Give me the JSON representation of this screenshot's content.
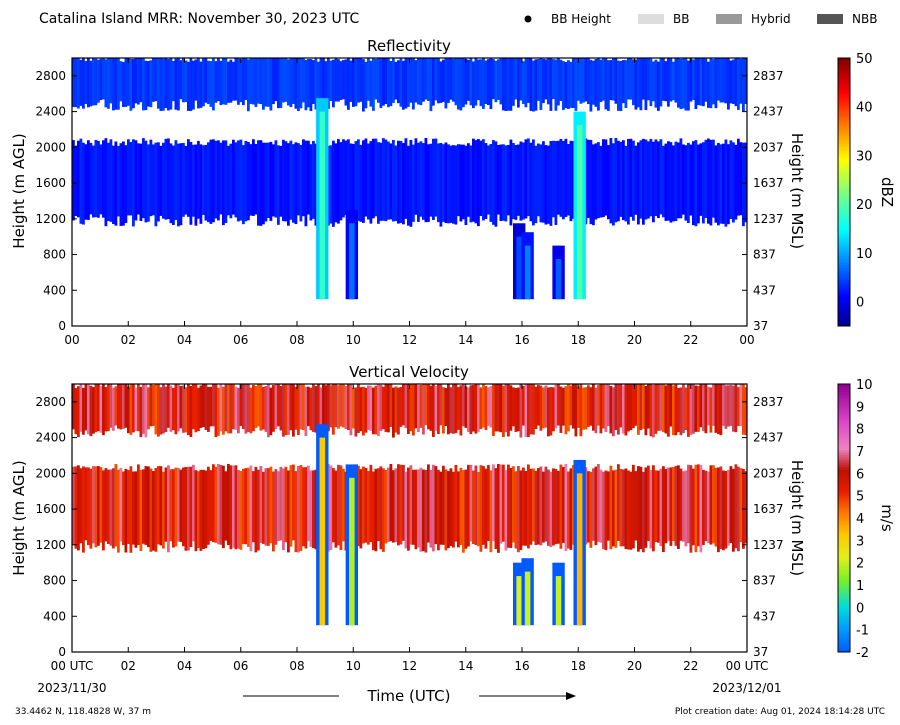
{
  "header": {
    "title": "Catalina Island MRR:  November 30, 2023 UTC",
    "legend": [
      {
        "label": "BB Height",
        "kind": "dot",
        "color": "#000000"
      },
      {
        "label": "BB",
        "kind": "box",
        "color": "#dddddd"
      },
      {
        "label": "Hybrid",
        "kind": "box",
        "color": "#999999"
      },
      {
        "label": "NBB",
        "kind": "box",
        "color": "#555555"
      }
    ]
  },
  "footer": {
    "location": "33.4462 N, 118.4828 W, 37 m",
    "creation": "Plot creation date: Aug 01, 2024 18:14:28 UTC",
    "time_label": "Time (UTC)",
    "start_date": "2023/11/30",
    "end_date": "2023/12/01"
  },
  "chart_data": [
    {
      "type": "heatmap",
      "title": "Reflectivity",
      "ylabel": "Height (m AGL)",
      "ylabel_right": "Height (m MSL)",
      "xlim": [
        0,
        24
      ],
      "ylim": [
        0,
        3000
      ],
      "x_ticks": [
        "00",
        "02",
        "04",
        "06",
        "08",
        "10",
        "12",
        "14",
        "16",
        "18",
        "20",
        "22",
        "00"
      ],
      "y_ticks": [
        0,
        400,
        800,
        1200,
        1600,
        2000,
        2400,
        2800
      ],
      "y_ticks_right": [
        37,
        437,
        837,
        1237,
        1637,
        2037,
        2437,
        2837
      ],
      "colorbar": {
        "label": "dBZ",
        "min": -5,
        "max": 50,
        "ticks": [
          0,
          10,
          20,
          30,
          40,
          50
        ]
      },
      "layers": [
        {
          "t0": 0,
          "t1": 24,
          "z0": 1180,
          "z1": 2060,
          "value": 2
        },
        {
          "t0": 0,
          "t1": 24,
          "z0": 2470,
          "z1": 3000,
          "value": 4
        }
      ],
      "cells": [
        {
          "t": 8.9,
          "z0": 300,
          "z1": 2550,
          "value": 18
        },
        {
          "t": 9.95,
          "z0": 300,
          "z1": 1300,
          "value": 7
        },
        {
          "t": 15.9,
          "z0": 300,
          "z1": 1150,
          "value": 5
        },
        {
          "t": 16.2,
          "z0": 300,
          "z1": 1050,
          "value": 8
        },
        {
          "t": 17.3,
          "z0": 300,
          "z1": 900,
          "value": 6
        },
        {
          "t": 18.05,
          "z0": 300,
          "z1": 2400,
          "value": 20
        }
      ]
    },
    {
      "type": "heatmap",
      "title": "Vertical Velocity",
      "xlabel": "Time (UTC)",
      "ylabel": "Height (m AGL)",
      "ylabel_right": "Height (m MSL)",
      "xlim": [
        0,
        24
      ],
      "ylim": [
        0,
        3000
      ],
      "x_ticks": [
        "00 UTC",
        "02",
        "04",
        "06",
        "08",
        "10",
        "12",
        "14",
        "16",
        "18",
        "20",
        "22",
        "00 UTC"
      ],
      "y_ticks": [
        0,
        400,
        800,
        1200,
        1600,
        2000,
        2400,
        2800
      ],
      "y_ticks_right": [
        37,
        437,
        837,
        1237,
        1637,
        2037,
        2437,
        2837
      ],
      "colorbar": {
        "label": "m/s",
        "min": -2,
        "max": 10,
        "ticks": [
          -2,
          -1,
          0,
          1,
          2,
          3,
          4,
          5,
          6,
          7,
          8,
          9,
          10
        ]
      },
      "layers": [
        {
          "t0": 0,
          "t1": 24,
          "z0": 1180,
          "z1": 2060,
          "value": 5.8
        },
        {
          "t0": 0,
          "t1": 24,
          "z0": 2470,
          "z1": 3000,
          "value": 5.8
        }
      ],
      "cells": [
        {
          "t": 8.9,
          "z0": 300,
          "z1": 2550,
          "value": 3.2
        },
        {
          "t": 9.95,
          "z0": 300,
          "z1": 2100,
          "value": 1.8
        },
        {
          "t": 15.9,
          "z0": 300,
          "z1": 1000,
          "value": 2.2
        },
        {
          "t": 16.2,
          "z0": 300,
          "z1": 1050,
          "value": 2.0
        },
        {
          "t": 17.3,
          "z0": 300,
          "z1": 1000,
          "value": 2.0
        },
        {
          "t": 18.05,
          "z0": 300,
          "z1": 2150,
          "value": 3.5
        }
      ]
    }
  ]
}
